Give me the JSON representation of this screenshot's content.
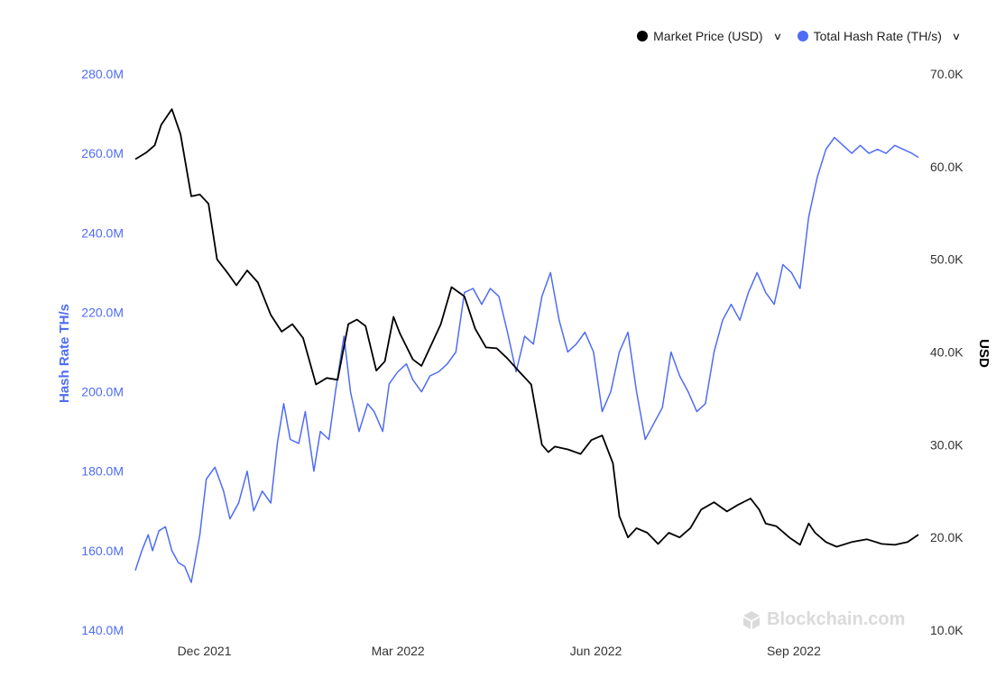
{
  "legend": {
    "price_label": "Market Price (USD)",
    "hash_label": "Total Hash Rate (TH/s)",
    "price_color": "#000000",
    "hash_color": "#4f6cf5"
  },
  "watermark": {
    "text": "Blockchain.com",
    "icon": "blockchain-logo-icon"
  },
  "chart_data": {
    "type": "line",
    "x_ticks": [
      "Dec 2021",
      "Mar 2022",
      "Jun 2022",
      "Sep 2022"
    ],
    "y_left": {
      "label": "Hash Rate TH/s",
      "ticks": [
        "140.0M",
        "160.0M",
        "180.0M",
        "200.0M",
        "220.0M",
        "240.0M",
        "260.0M",
        "280.0M"
      ],
      "min": 140,
      "max": 280,
      "unit": "M TH/s",
      "color": "#4f6cf5"
    },
    "y_right": {
      "label": "USD",
      "ticks": [
        "10.0K",
        "20.0K",
        "30.0K",
        "40.0K",
        "50.0K",
        "60.0K",
        "70.0K"
      ],
      "min": 10,
      "max": 70,
      "unit": "K USD",
      "color": "#000000"
    },
    "x_range": [
      "2021-11-01",
      "2022-10-31"
    ],
    "series": [
      {
        "name": "Market Price (USD)",
        "axis": "right",
        "color": "#000000",
        "x": [
          "2021-11-01",
          "2021-11-06",
          "2021-11-10",
          "2021-11-13",
          "2021-11-18",
          "2021-11-22",
          "2021-11-27",
          "2021-12-01",
          "2021-12-05",
          "2021-12-09",
          "2021-12-14",
          "2021-12-18",
          "2021-12-23",
          "2021-12-28",
          "2022-01-03",
          "2022-01-08",
          "2022-01-13",
          "2022-01-18",
          "2022-01-24",
          "2022-01-29",
          "2022-02-03",
          "2022-02-08",
          "2022-02-12",
          "2022-02-16",
          "2022-02-21",
          "2022-02-25",
          "2022-03-01",
          "2022-03-04",
          "2022-03-10",
          "2022-03-14",
          "2022-03-18",
          "2022-03-23",
          "2022-03-28",
          "2022-04-03",
          "2022-04-08",
          "2022-04-13",
          "2022-04-18",
          "2022-04-23",
          "2022-04-28",
          "2022-05-04",
          "2022-05-09",
          "2022-05-12",
          "2022-05-15",
          "2022-05-21",
          "2022-05-27",
          "2022-06-01",
          "2022-06-06",
          "2022-06-11",
          "2022-06-14",
          "2022-06-18",
          "2022-06-22",
          "2022-06-27",
          "2022-07-02",
          "2022-07-07",
          "2022-07-12",
          "2022-07-17",
          "2022-07-22",
          "2022-07-28",
          "2022-08-03",
          "2022-08-08",
          "2022-08-14",
          "2022-08-18",
          "2022-08-21",
          "2022-08-26",
          "2022-09-01",
          "2022-09-06",
          "2022-09-10",
          "2022-09-13",
          "2022-09-18",
          "2022-09-23",
          "2022-09-30",
          "2022-10-07",
          "2022-10-14",
          "2022-10-20",
          "2022-10-26",
          "2022-10-31"
        ],
        "values": [
          60.8,
          61.5,
          62.3,
          64.5,
          66.2,
          63.5,
          56.8,
          57.0,
          56.0,
          50.0,
          48.5,
          47.2,
          48.8,
          47.5,
          44.0,
          42.2,
          43.0,
          41.5,
          36.5,
          37.2,
          37.0,
          43.0,
          43.5,
          42.8,
          38.0,
          39.0,
          43.8,
          42.0,
          39.2,
          38.5,
          40.5,
          43.0,
          47.0,
          46.0,
          42.5,
          40.5,
          40.4,
          39.3,
          38.0,
          36.5,
          30.0,
          29.2,
          29.8,
          29.5,
          29.0,
          30.5,
          31.0,
          28.0,
          22.3,
          20.0,
          21.0,
          20.5,
          19.3,
          20.5,
          20.0,
          21.0,
          23.0,
          23.8,
          22.8,
          23.5,
          24.2,
          23.0,
          21.5,
          21.2,
          20.0,
          19.2,
          21.5,
          20.5,
          19.5,
          19.0,
          19.5,
          19.8,
          19.3,
          19.2,
          19.5,
          20.3
        ]
      },
      {
        "name": "Total Hash Rate (TH/s)",
        "axis": "left",
        "color": "#4f6cf5",
        "x": [
          "2021-11-01",
          "2021-11-04",
          "2021-11-07",
          "2021-11-09",
          "2021-11-12",
          "2021-11-15",
          "2021-11-18",
          "2021-11-21",
          "2021-11-24",
          "2021-11-27",
          "2021-12-01",
          "2021-12-04",
          "2021-12-08",
          "2021-12-12",
          "2021-12-15",
          "2021-12-19",
          "2021-12-23",
          "2021-12-26",
          "2021-12-30",
          "2022-01-03",
          "2022-01-06",
          "2022-01-09",
          "2022-01-12",
          "2022-01-16",
          "2022-01-19",
          "2022-01-23",
          "2022-01-26",
          "2022-01-30",
          "2022-02-02",
          "2022-02-06",
          "2022-02-09",
          "2022-02-13",
          "2022-02-17",
          "2022-02-20",
          "2022-02-24",
          "2022-02-27",
          "2022-03-03",
          "2022-03-07",
          "2022-03-10",
          "2022-03-14",
          "2022-03-18",
          "2022-03-22",
          "2022-03-26",
          "2022-03-30",
          "2022-04-03",
          "2022-04-07",
          "2022-04-11",
          "2022-04-15",
          "2022-04-19",
          "2022-04-23",
          "2022-04-27",
          "2022-05-01",
          "2022-05-05",
          "2022-05-09",
          "2022-05-13",
          "2022-05-17",
          "2022-05-21",
          "2022-05-25",
          "2022-05-29",
          "2022-06-02",
          "2022-06-06",
          "2022-06-10",
          "2022-06-14",
          "2022-06-18",
          "2022-06-22",
          "2022-06-26",
          "2022-06-30",
          "2022-07-04",
          "2022-07-08",
          "2022-07-12",
          "2022-07-16",
          "2022-07-20",
          "2022-07-24",
          "2022-07-28",
          "2022-08-01",
          "2022-08-05",
          "2022-08-09",
          "2022-08-13",
          "2022-08-17",
          "2022-08-21",
          "2022-08-25",
          "2022-08-29",
          "2022-09-02",
          "2022-09-06",
          "2022-09-10",
          "2022-09-14",
          "2022-09-18",
          "2022-09-22",
          "2022-09-26",
          "2022-09-30",
          "2022-10-04",
          "2022-10-08",
          "2022-10-12",
          "2022-10-16",
          "2022-10-20",
          "2022-10-24",
          "2022-10-28",
          "2022-10-31"
        ],
        "values": [
          155,
          160,
          164,
          160,
          165,
          166,
          160,
          157,
          156,
          152,
          164,
          178,
          181,
          175,
          168,
          172,
          180,
          170,
          175,
          172,
          187,
          197,
          188,
          187,
          195,
          180,
          190,
          188,
          200,
          214,
          200,
          190,
          197,
          195,
          190,
          202,
          205,
          207,
          203,
          200,
          204,
          205,
          207,
          210,
          225,
          226,
          222,
          226,
          224,
          215,
          205,
          214,
          212,
          224,
          230,
          218,
          210,
          212,
          215,
          210,
          195,
          200,
          210,
          215,
          200,
          188,
          192,
          196,
          210,
          204,
          200,
          195,
          197,
          210,
          218,
          222,
          218,
          225,
          230,
          225,
          222,
          232,
          230,
          226,
          244,
          254,
          261,
          264,
          262,
          260,
          262,
          260,
          261,
          260,
          262,
          261,
          260,
          259
        ]
      }
    ],
    "grid": false,
    "legend_position": "top-right"
  }
}
